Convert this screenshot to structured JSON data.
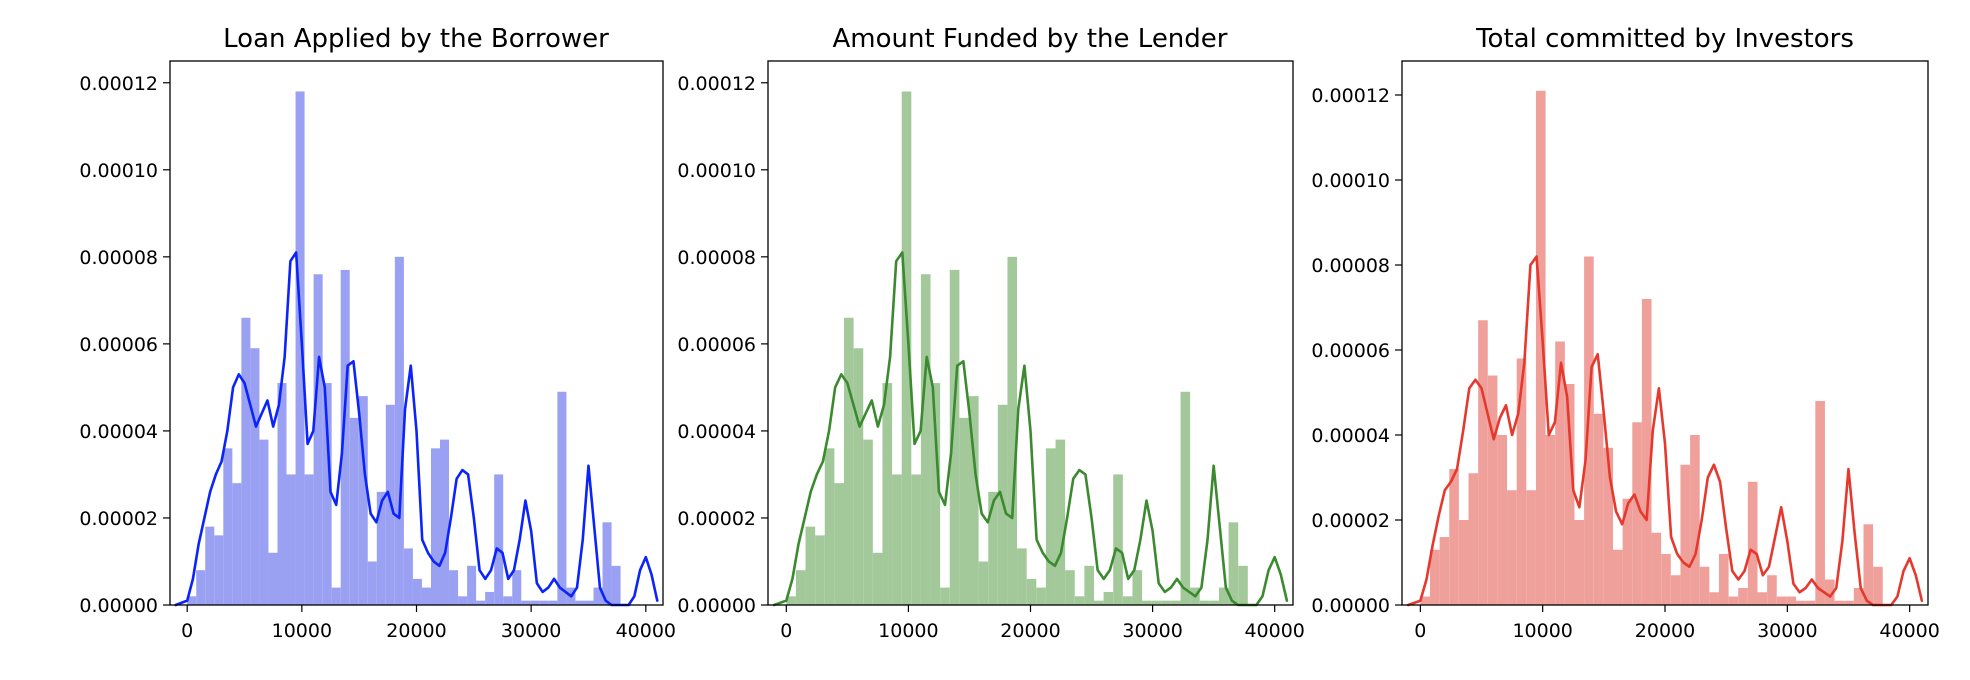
{
  "chart_data": [
    {
      "type": "histogram",
      "title": "Loan Applied by the Borrower",
      "xlabel": "",
      "ylabel": "",
      "xlim": [
        -1500,
        41500
      ],
      "ylim": [
        0,
        0.000125
      ],
      "xticks": [
        "0",
        "10000",
        "20000",
        "30000",
        "40000"
      ],
      "yticks": [
        "0.00000",
        "0.00002",
        "0.00004",
        "0.00006",
        "0.00008",
        "0.00010",
        "0.00012"
      ],
      "grid": false,
      "legend": "none",
      "color": "#0b24fb",
      "bar_color": "#9aa1f3",
      "bin_start": 0,
      "bin_width": 787.5,
      "bar_values": [
        2e-06,
        8e-06,
        1.8e-05,
        1.6e-05,
        3.6e-05,
        2.8e-05,
        6.6e-05,
        5.9e-05,
        3.8e-05,
        1.2e-05,
        5.1e-05,
        3e-05,
        0.000118,
        3e-05,
        7.6e-05,
        5.1e-05,
        4e-06,
        7.7e-05,
        4.3e-05,
        4.8e-05,
        1e-05,
        2.6e-05,
        4.6e-05,
        8e-05,
        1.3e-05,
        6e-06,
        4e-06,
        3.6e-05,
        3.8e-05,
        8e-06,
        2e-06,
        9e-06,
        1e-06,
        3e-06,
        3e-05,
        2e-06,
        8e-06,
        1e-06,
        1e-06,
        1e-06,
        1e-06,
        4.9e-05,
        4e-06,
        1e-06,
        1e-06,
        4e-06,
        1.9e-05,
        9e-06
      ],
      "kde": {
        "x": [
          -1000,
          0,
          500,
          1000,
          1500,
          2000,
          2500,
          3000,
          3500,
          4000,
          4500,
          5000,
          5500,
          6000,
          6500,
          7000,
          7500,
          8000,
          8500,
          9000,
          9500,
          10000,
          10500,
          11000,
          11500,
          12000,
          12500,
          13000,
          13500,
          14000,
          14500,
          15000,
          15500,
          16000,
          16500,
          17000,
          17500,
          18000,
          18500,
          19000,
          19500,
          20000,
          20500,
          21000,
          21500,
          22000,
          22500,
          23000,
          23500,
          24000,
          24500,
          25000,
          25500,
          26000,
          26500,
          27000,
          27500,
          28000,
          28500,
          29000,
          29500,
          30000,
          30500,
          31000,
          31500,
          32000,
          32500,
          33000,
          33500,
          34000,
          34500,
          35000,
          35500,
          36000,
          36500,
          37000,
          37500,
          38000,
          38500,
          39000,
          39500,
          40000,
          40500,
          41000
        ],
        "y": [
          0,
          1e-06,
          6e-06,
          1.4e-05,
          2e-05,
          2.6e-05,
          3e-05,
          3.3e-05,
          4e-05,
          5e-05,
          5.3e-05,
          5.1e-05,
          4.6e-05,
          4.1e-05,
          4.4e-05,
          4.7e-05,
          4.1e-05,
          4.6e-05,
          5.7e-05,
          7.9e-05,
          8.1e-05,
          6e-05,
          3.7e-05,
          4e-05,
          5.7e-05,
          5e-05,
          2.6e-05,
          2.3e-05,
          3.5e-05,
          5.5e-05,
          5.6e-05,
          4.4e-05,
          3e-05,
          2.1e-05,
          1.9e-05,
          2.4e-05,
          2.6e-05,
          2.1e-05,
          2e-05,
          4.5e-05,
          5.5e-05,
          4e-05,
          1.5e-05,
          1.2e-05,
          1e-05,
          9e-06,
          1.2e-05,
          2e-05,
          2.9e-05,
          3.1e-05,
          3e-05,
          2e-05,
          8e-06,
          6e-06,
          8e-06,
          1.3e-05,
          1.2e-05,
          6e-06,
          8e-06,
          1.5e-05,
          2.4e-05,
          1.7e-05,
          5e-06,
          3e-06,
          4e-06,
          6e-06,
          4e-06,
          3e-06,
          2e-06,
          4e-06,
          1.5e-05,
          3.2e-05,
          1.8e-05,
          4e-06,
          1e-06,
          0.0,
          0.0,
          0.0,
          0.0,
          2e-06,
          8e-06,
          1.1e-05,
          7e-06,
          1e-06
        ]
      }
    },
    {
      "type": "histogram",
      "title": "Amount Funded by the Lender",
      "xlabel": "",
      "ylabel": "",
      "xlim": [
        -1500,
        41500
      ],
      "ylim": [
        0,
        0.000125
      ],
      "xticks": [
        "0",
        "10000",
        "20000",
        "30000",
        "40000"
      ],
      "yticks": [
        "0.00000",
        "0.00002",
        "0.00004",
        "0.00006",
        "0.00008",
        "0.00010",
        "0.00012"
      ],
      "grid": false,
      "legend": "none",
      "color": "#3b8a2f",
      "bar_color": "#a3c99b",
      "bin_start": 0,
      "bin_width": 787.5,
      "bar_values": [
        2e-06,
        8e-06,
        1.8e-05,
        1.6e-05,
        3.6e-05,
        2.8e-05,
        6.6e-05,
        5.9e-05,
        3.8e-05,
        1.2e-05,
        5.1e-05,
        3e-05,
        0.000118,
        3e-05,
        7.6e-05,
        5.1e-05,
        4e-06,
        7.7e-05,
        4.3e-05,
        4.8e-05,
        1e-05,
        2.6e-05,
        4.6e-05,
        8e-05,
        1.3e-05,
        6e-06,
        4e-06,
        3.6e-05,
        3.8e-05,
        8e-06,
        2e-06,
        9e-06,
        1e-06,
        3e-06,
        3e-05,
        2e-06,
        8e-06,
        1e-06,
        1e-06,
        1e-06,
        1e-06,
        4.9e-05,
        4e-06,
        1e-06,
        1e-06,
        4e-06,
        1.9e-05,
        9e-06
      ],
      "kde": {
        "x": [
          -1000,
          0,
          500,
          1000,
          1500,
          2000,
          2500,
          3000,
          3500,
          4000,
          4500,
          5000,
          5500,
          6000,
          6500,
          7000,
          7500,
          8000,
          8500,
          9000,
          9500,
          10000,
          10500,
          11000,
          11500,
          12000,
          12500,
          13000,
          13500,
          14000,
          14500,
          15000,
          15500,
          16000,
          16500,
          17000,
          17500,
          18000,
          18500,
          19000,
          19500,
          20000,
          20500,
          21000,
          21500,
          22000,
          22500,
          23000,
          23500,
          24000,
          24500,
          25000,
          25500,
          26000,
          26500,
          27000,
          27500,
          28000,
          28500,
          29000,
          29500,
          30000,
          30500,
          31000,
          31500,
          32000,
          32500,
          33000,
          33500,
          34000,
          34500,
          35000,
          35500,
          36000,
          36500,
          37000,
          37500,
          38000,
          38500,
          39000,
          39500,
          40000,
          40500,
          41000
        ],
        "y": [
          0,
          1e-06,
          6e-06,
          1.4e-05,
          2e-05,
          2.6e-05,
          3e-05,
          3.3e-05,
          4e-05,
          5e-05,
          5.3e-05,
          5.1e-05,
          4.6e-05,
          4.1e-05,
          4.4e-05,
          4.7e-05,
          4.1e-05,
          4.6e-05,
          5.7e-05,
          7.9e-05,
          8.1e-05,
          6e-05,
          3.7e-05,
          4e-05,
          5.7e-05,
          5e-05,
          2.6e-05,
          2.3e-05,
          3.5e-05,
          5.5e-05,
          5.6e-05,
          4.4e-05,
          3e-05,
          2.1e-05,
          1.9e-05,
          2.4e-05,
          2.6e-05,
          2.1e-05,
          2e-05,
          4.5e-05,
          5.5e-05,
          4e-05,
          1.5e-05,
          1.2e-05,
          1e-05,
          9e-06,
          1.2e-05,
          2e-05,
          2.9e-05,
          3.1e-05,
          3e-05,
          2e-05,
          8e-06,
          6e-06,
          8e-06,
          1.3e-05,
          1.2e-05,
          6e-06,
          8e-06,
          1.5e-05,
          2.4e-05,
          1.7e-05,
          5e-06,
          3e-06,
          4e-06,
          6e-06,
          4e-06,
          3e-06,
          2e-06,
          4e-06,
          1.5e-05,
          3.2e-05,
          1.8e-05,
          4e-06,
          1e-06,
          0.0,
          0.0,
          0.0,
          0.0,
          2e-06,
          8e-06,
          1.1e-05,
          7e-06,
          1e-06
        ]
      }
    },
    {
      "type": "histogram",
      "title": "Total committed by Investors",
      "xlabel": "",
      "ylabel": "",
      "xlim": [
        -1500,
        41500
      ],
      "ylim": [
        0,
        0.000128
      ],
      "xticks": [
        "0",
        "10000",
        "20000",
        "30000",
        "40000"
      ],
      "yticks": [
        "0.00000",
        "0.00002",
        "0.00004",
        "0.00006",
        "0.00008",
        "0.00010",
        "0.00012"
      ],
      "grid": false,
      "legend": "none",
      "color": "#e6392e",
      "bar_color": "#f0a09b",
      "bin_start": 0,
      "bin_width": 787.5,
      "bar_values": [
        2e-06,
        1.3e-05,
        1.6e-05,
        3.2e-05,
        2e-05,
        3.1e-05,
        6.7e-05,
        5.4e-05,
        4e-05,
        2.7e-05,
        5.8e-05,
        2.7e-05,
        0.000121,
        4e-05,
        6.2e-05,
        5.2e-05,
        2e-05,
        8.2e-05,
        4.5e-05,
        3.7e-05,
        1.3e-05,
        2.5e-05,
        4.3e-05,
        7.2e-05,
        1.7e-05,
        1.2e-05,
        7e-06,
        3.3e-05,
        4e-05,
        9e-06,
        3e-06,
        1.2e-05,
        2e-06,
        4e-06,
        2.9e-05,
        3e-06,
        7e-06,
        2e-06,
        2e-06,
        1e-06,
        1e-06,
        4.8e-05,
        6e-06,
        1e-06,
        1e-06,
        4e-06,
        1.9e-05,
        9e-06
      ],
      "kde": {
        "x": [
          -1000,
          0,
          500,
          1000,
          1500,
          2000,
          2500,
          3000,
          3500,
          4000,
          4500,
          5000,
          5500,
          6000,
          6500,
          7000,
          7500,
          8000,
          8500,
          9000,
          9500,
          10000,
          10500,
          11000,
          11500,
          12000,
          12500,
          13000,
          13500,
          14000,
          14500,
          15000,
          15500,
          16000,
          16500,
          17000,
          17500,
          18000,
          18500,
          19000,
          19500,
          20000,
          20500,
          21000,
          21500,
          22000,
          22500,
          23000,
          23500,
          24000,
          24500,
          25000,
          25500,
          26000,
          26500,
          27000,
          27500,
          28000,
          28500,
          29000,
          29500,
          30000,
          30500,
          31000,
          31500,
          32000,
          32500,
          33000,
          33500,
          34000,
          34500,
          35000,
          35500,
          36000,
          36500,
          37000,
          37500,
          38000,
          38500,
          39000,
          39500,
          40000,
          40500,
          41000
        ],
        "y": [
          0,
          1e-06,
          6e-06,
          1.4e-05,
          2.1e-05,
          2.7e-05,
          2.9e-05,
          3.2e-05,
          4.1e-05,
          5.1e-05,
          5.3e-05,
          5.1e-05,
          4.5e-05,
          3.9e-05,
          4.4e-05,
          4.7e-05,
          4e-05,
          4.5e-05,
          5.7e-05,
          8e-05,
          8.2e-05,
          6.2e-05,
          4e-05,
          4.3e-05,
          5.7e-05,
          4.9e-05,
          2.7e-05,
          2.3e-05,
          3.4e-05,
          5.6e-05,
          5.9e-05,
          4.5e-05,
          3e-05,
          2.2e-05,
          1.9e-05,
          2.4e-05,
          2.6e-05,
          2.2e-05,
          2e-05,
          4.1e-05,
          5.1e-05,
          3.8e-05,
          1.6e-05,
          1.2e-05,
          1e-05,
          9e-06,
          1.2e-05,
          2e-05,
          3e-05,
          3.3e-05,
          2.9e-05,
          1.8e-05,
          8e-06,
          6e-06,
          8e-06,
          1.3e-05,
          1.2e-05,
          7e-06,
          9e-06,
          1.6e-05,
          2.3e-05,
          1.5e-05,
          5e-06,
          3e-06,
          4e-06,
          6e-06,
          4e-06,
          3e-06,
          2e-06,
          4e-06,
          1.5e-05,
          3.2e-05,
          1.7e-05,
          4e-06,
          1e-06,
          0.0,
          0.0,
          0.0,
          0.0,
          2e-06,
          8e-06,
          1.1e-05,
          7e-06,
          1e-06
        ]
      }
    }
  ]
}
